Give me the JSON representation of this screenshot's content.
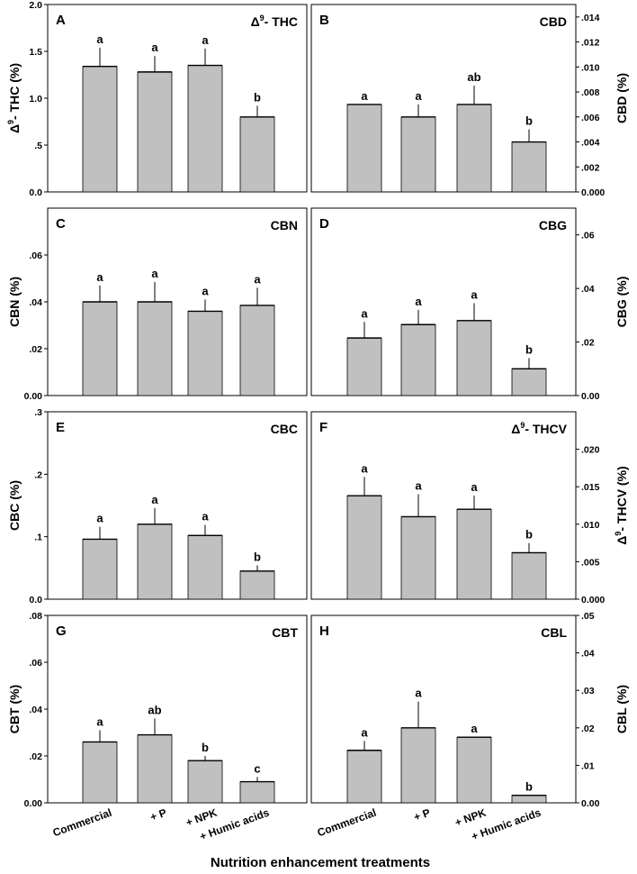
{
  "figure": {
    "x_title": "Nutrition enhancement treatments"
  },
  "chart_data": [
    {
      "type": "bar",
      "panel": "A",
      "title": "THC",
      "title_prefix": "Δ",
      "title_sup": "9",
      "title_sep": "- ",
      "ylabel": "THC (%)",
      "ylabel_prefix": "Δ",
      "ylabel_sup": "9",
      "ylabel_sep": "- ",
      "axis_side": "left",
      "categories": [
        "Commercial",
        "+ P",
        "+ NPK",
        "+ Humic acids"
      ],
      "values": [
        1.34,
        1.28,
        1.35,
        0.8
      ],
      "errors": [
        0.2,
        0.17,
        0.18,
        0.12
      ],
      "letters": [
        "a",
        "a",
        "a",
        "b"
      ],
      "ylim": [
        0,
        2.0
      ],
      "ticks": [
        0,
        0.5,
        1.0,
        1.5,
        2.0
      ],
      "tick_labels": [
        "0.0",
        ".5",
        "1.0",
        "1.5",
        "2.0"
      ]
    },
    {
      "type": "bar",
      "panel": "B",
      "title": "CBD",
      "ylabel": "CBD (%)",
      "axis_side": "right",
      "categories": [
        "Commercial",
        "+ P",
        "+ NPK",
        "+ Humic acids"
      ],
      "values": [
        0.007,
        0.006,
        0.007,
        0.004
      ],
      "errors": [
        0.0,
        0.001,
        0.0015,
        0.001
      ],
      "letters": [
        "a",
        "a",
        "ab",
        "b"
      ],
      "ylim": [
        0,
        0.015
      ],
      "ticks": [
        0,
        0.002,
        0.004,
        0.006,
        0.008,
        0.01,
        0.012,
        0.014
      ],
      "tick_labels": [
        "0.000",
        ".002",
        ".004",
        ".006",
        ".008",
        ".010",
        ".012",
        ".014"
      ]
    },
    {
      "type": "bar",
      "panel": "C",
      "title": "CBN",
      "ylabel": "CBN (%)",
      "axis_side": "left",
      "categories": [
        "Commercial",
        "+ P",
        "+ NPK",
        "+ Humic acids"
      ],
      "values": [
        0.04,
        0.04,
        0.036,
        0.0385
      ],
      "errors": [
        0.007,
        0.0085,
        0.005,
        0.0075
      ],
      "letters": [
        "a",
        "a",
        "a",
        "a"
      ],
      "ylim": [
        0,
        0.08
      ],
      "ticks": [
        0,
        0.02,
        0.04,
        0.06
      ],
      "tick_labels": [
        "0.00",
        ".02",
        ".04",
        ".06"
      ]
    },
    {
      "type": "bar",
      "panel": "D",
      "title": "CBG",
      "ylabel": "CBG (%)",
      "axis_side": "right",
      "categories": [
        "Commercial",
        "+ P",
        "+ NPK",
        "+ Humic acids"
      ],
      "values": [
        0.0215,
        0.0265,
        0.028,
        0.01
      ],
      "errors": [
        0.006,
        0.0055,
        0.0065,
        0.004
      ],
      "letters": [
        "a",
        "a",
        "a",
        "b"
      ],
      "ylim": [
        0,
        0.07
      ],
      "ticks": [
        0,
        0.02,
        0.04,
        0.06
      ],
      "tick_labels": [
        "0.00",
        ".02",
        ".04",
        ".06"
      ]
    },
    {
      "type": "bar",
      "panel": "E",
      "title": "CBC",
      "ylabel": "CBC (%)",
      "axis_side": "left",
      "categories": [
        "Commercial",
        "+ P",
        "+ NPK",
        "+ Humic acids"
      ],
      "values": [
        0.096,
        0.12,
        0.102,
        0.045
      ],
      "errors": [
        0.02,
        0.026,
        0.017,
        0.009
      ],
      "letters": [
        "a",
        "a",
        "a",
        "b"
      ],
      "ylim": [
        0,
        0.3
      ],
      "ticks": [
        0,
        0.1,
        0.2,
        0.3
      ],
      "tick_labels": [
        "0.0",
        ".1",
        ".2",
        ".3"
      ]
    },
    {
      "type": "bar",
      "panel": "F",
      "title": "THCV",
      "title_prefix": "Δ",
      "title_sup": "9",
      "title_sep": "- ",
      "ylabel": "THCV (%)",
      "ylabel_prefix": "Δ",
      "ylabel_sup": "9",
      "ylabel_sep": "- ",
      "axis_side": "right",
      "categories": [
        "Commercial",
        "+ P",
        "+ NPK",
        "+ Humic acids"
      ],
      "values": [
        0.0138,
        0.011,
        0.012,
        0.0062
      ],
      "errors": [
        0.0025,
        0.003,
        0.0018,
        0.0013
      ],
      "letters": [
        "a",
        "a",
        "a",
        "b"
      ],
      "ylim": [
        0,
        0.025
      ],
      "ticks": [
        0,
        0.005,
        0.01,
        0.015,
        0.02
      ],
      "tick_labels": [
        "0.000",
        ".005",
        ".010",
        ".015",
        ".020"
      ]
    },
    {
      "type": "bar",
      "panel": "G",
      "title": "CBT",
      "ylabel": "CBT (%)",
      "axis_side": "left",
      "categories": [
        "Commercial",
        "+ P",
        "+ NPK",
        "+ Humic acids"
      ],
      "values": [
        0.026,
        0.029,
        0.018,
        0.009
      ],
      "errors": [
        0.005,
        0.007,
        0.002,
        0.002
      ],
      "letters": [
        "a",
        "ab",
        "b",
        "c"
      ],
      "ylim": [
        0,
        0.08
      ],
      "ticks": [
        0,
        0.02,
        0.04,
        0.06,
        0.08
      ],
      "tick_labels": [
        "0.00",
        ".02",
        ".04",
        ".06",
        ".08"
      ]
    },
    {
      "type": "bar",
      "panel": "H",
      "title": "CBL",
      "ylabel": "CBL (%)",
      "axis_side": "right",
      "categories": [
        "Commercial",
        "+ P",
        "+ NPK",
        "+ Humic acids"
      ],
      "values": [
        0.014,
        0.02,
        0.0175,
        0.002
      ],
      "errors": [
        0.0025,
        0.007,
        0.0,
        0.0
      ],
      "letters": [
        "a",
        "a",
        "a",
        "b"
      ],
      "ylim": [
        0,
        0.05
      ],
      "ticks": [
        0,
        0.01,
        0.02,
        0.03,
        0.04,
        0.05
      ],
      "tick_labels": [
        "0.00",
        ".01",
        ".02",
        ".03",
        ".04",
        ".05"
      ]
    }
  ]
}
